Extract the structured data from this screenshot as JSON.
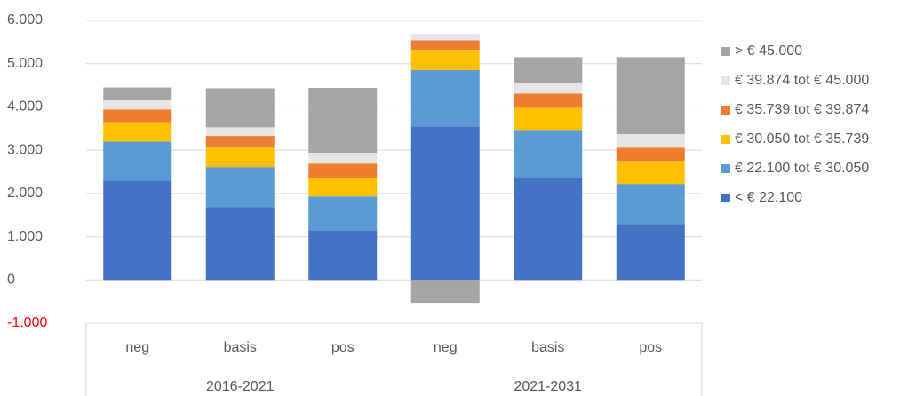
{
  "chart_data": {
    "type": "stacked_bar",
    "categories": [
      "neg",
      "basis",
      "pos",
      "neg",
      "basis",
      "pos"
    ],
    "groups": [
      "2016-2021",
      "2021-2031"
    ],
    "series": [
      {
        "name": "< € 22.100",
        "color": "#4472c4",
        "values": [
          2300,
          1680,
          1150,
          3550,
          2360,
          1290
        ]
      },
      {
        "name": "€ 22.100 tot € 30.050",
        "color": "#5b9bd5",
        "values": [
          900,
          930,
          780,
          1300,
          1110,
          930
        ]
      },
      {
        "name": "€ 30.050 tot € 35.739",
        "color": "#ffc000",
        "values": [
          450,
          450,
          430,
          470,
          510,
          530
        ]
      },
      {
        "name": "€ 35.739 tot € 39.874",
        "color": "#ed7d31",
        "values": [
          290,
          270,
          330,
          220,
          330,
          310
        ]
      },
      {
        "name": "€ 39.874 tot € 45.000",
        "color": "#e7e6e6",
        "values": [
          210,
          200,
          250,
          150,
          250,
          310
        ]
      },
      {
        "name": "> € 45.000",
        "color": "#a5a5a5",
        "values": [
          300,
          900,
          1500,
          -530,
          590,
          1780
        ]
      }
    ],
    "ylim": [
      -1000,
      6000
    ],
    "yticks": [
      {
        "value": -1000,
        "label": "-1.000"
      },
      0,
      {
        "value": 1000,
        "label": "1.000"
      },
      {
        "value": 2000,
        "label": "2.000"
      },
      {
        "value": 3000,
        "label": "3.000"
      },
      {
        "value": 4000,
        "label": "4.000"
      },
      {
        "value": 5000,
        "label": "5.000"
      },
      {
        "value": 6000,
        "label": "6.000"
      }
    ],
    "negative_tick_color": "#ff0000",
    "grid": true,
    "legend": "right"
  }
}
